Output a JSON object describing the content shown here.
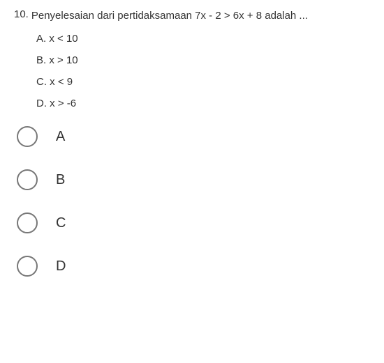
{
  "question": {
    "number": "10.",
    "text": "Penyelesaian dari pertidaksamaan 7x - 2 > 6x + 8 adalah ...",
    "answers": [
      {
        "letter": "A.",
        "content": "x < 10"
      },
      {
        "letter": "B.",
        "content": "x > 10"
      },
      {
        "letter": "C.",
        "content": "x < 9"
      },
      {
        "letter": "D.",
        "content": "x > -6"
      }
    ]
  },
  "radio_options": [
    {
      "label": "A"
    },
    {
      "label": "B"
    },
    {
      "label": "C"
    },
    {
      "label": "D"
    }
  ]
}
